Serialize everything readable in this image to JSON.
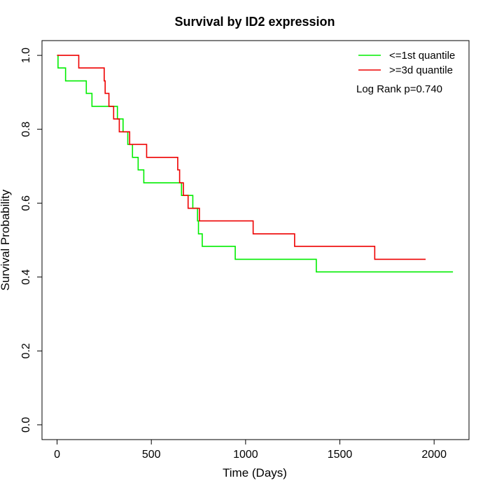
{
  "chart_data": {
    "type": "line",
    "title": "Survival by ID2 expression",
    "xlabel": "Time (Days)",
    "ylabel": "Survival Probability",
    "xlim": [
      -80,
      2185
    ],
    "ylim": [
      -0.04,
      1.04
    ],
    "x_ticks": [
      0,
      500,
      1000,
      1500,
      2000
    ],
    "y_ticks": [
      0.0,
      0.2,
      0.4,
      0.6,
      0.8,
      1.0
    ],
    "y_tick_labels": [
      "0.0",
      "0.2",
      "0.4",
      "0.6",
      "0.8",
      "1.0"
    ],
    "grid": false,
    "legend_position": "top-right",
    "annotation": "Log Rank p=0.740",
    "series": [
      {
        "name": "<=1st quantile",
        "color": "#00ee00",
        "step_points": [
          [
            0,
            1.0
          ],
          [
            5,
            0.966
          ],
          [
            45,
            0.931
          ],
          [
            155,
            0.897
          ],
          [
            185,
            0.862
          ],
          [
            320,
            0.828
          ],
          [
            350,
            0.793
          ],
          [
            375,
            0.759
          ],
          [
            400,
            0.724
          ],
          [
            430,
            0.69
          ],
          [
            460,
            0.655
          ],
          [
            660,
            0.621
          ],
          [
            720,
            0.586
          ],
          [
            745,
            0.552
          ],
          [
            750,
            0.517
          ],
          [
            770,
            0.483
          ],
          [
            945,
            0.448
          ],
          [
            1375,
            0.414
          ],
          [
            2100,
            0.414
          ]
        ]
      },
      {
        "name": ">=3d quantile",
        "color": "#ee0000",
        "step_points": [
          [
            0,
            1.0
          ],
          [
            115,
            0.966
          ],
          [
            250,
            0.931
          ],
          [
            255,
            0.897
          ],
          [
            275,
            0.862
          ],
          [
            300,
            0.828
          ],
          [
            330,
            0.793
          ],
          [
            385,
            0.759
          ],
          [
            475,
            0.724
          ],
          [
            640,
            0.69
          ],
          [
            650,
            0.655
          ],
          [
            670,
            0.621
          ],
          [
            695,
            0.586
          ],
          [
            755,
            0.552
          ],
          [
            1040,
            0.517
          ],
          [
            1260,
            0.483
          ],
          [
            1685,
            0.448
          ],
          [
            1955,
            0.448
          ]
        ]
      }
    ]
  }
}
